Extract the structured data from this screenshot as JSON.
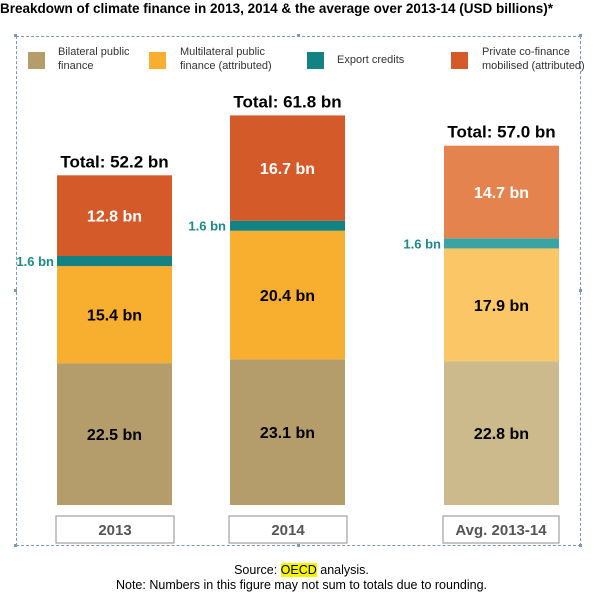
{
  "title": "Breakdown of climate finance in 2013, 2014 & the average over 2013-14 (USD billions)*",
  "legend": [
    {
      "line1": "Bilateral public",
      "line2": "finance",
      "color": "#b49d6b"
    },
    {
      "line1": "Multilateral public",
      "line2": "finance (attributed)",
      "color": "#f8ae2e"
    },
    {
      "line1": "Export credits",
      "line2": "",
      "color": "#138282"
    },
    {
      "line1": "Private co-finance",
      "line2": "mobilised (attributed)",
      "color": "#d55a2a"
    }
  ],
  "footer": {
    "source_prefix": "Source: ",
    "source_org": "OECD",
    "source_suffix": " analysis.",
    "note": "Note: Numbers in this figure may not sum to totals due to rounding."
  },
  "chart_data": {
    "type": "bar",
    "stacked": true,
    "categories": [
      "2013",
      "2014",
      "Avg. 2013-14"
    ],
    "series": [
      {
        "name": "Bilateral public finance",
        "values": [
          22.5,
          23.1,
          22.8
        ],
        "labels": [
          "22.5 bn",
          "23.1 bn",
          "22.8 bn"
        ],
        "color": "#b49d6b",
        "avg_color": "#ccb98c"
      },
      {
        "name": "Multilateral public finance (attributed)",
        "values": [
          15.4,
          20.4,
          17.9
        ],
        "labels": [
          "15.4 bn",
          "20.4 bn",
          "17.9 bn"
        ],
        "color": "#f8ae2e",
        "avg_color": "#fbc766"
      },
      {
        "name": "Export credits",
        "values": [
          1.6,
          1.6,
          1.6
        ],
        "labels": [
          "1.6 bn",
          "1.6 bn",
          "1.6 bn"
        ],
        "color": "#138282",
        "avg_color": "#3aa3a3"
      },
      {
        "name": "Private co-finance mobilised (attributed)",
        "values": [
          12.8,
          16.7,
          14.7
        ],
        "labels": [
          "12.8 bn",
          "16.7 bn",
          "14.7 bn"
        ],
        "color": "#d55a2a",
        "avg_color": "#e5834f"
      }
    ],
    "totals": [
      "Total: 52.2 bn",
      "Total: 61.8 bn",
      "Total: 57.0 bn"
    ],
    "ylim": [
      0,
      62.5
    ],
    "grid": false,
    "legend_position": "top"
  }
}
